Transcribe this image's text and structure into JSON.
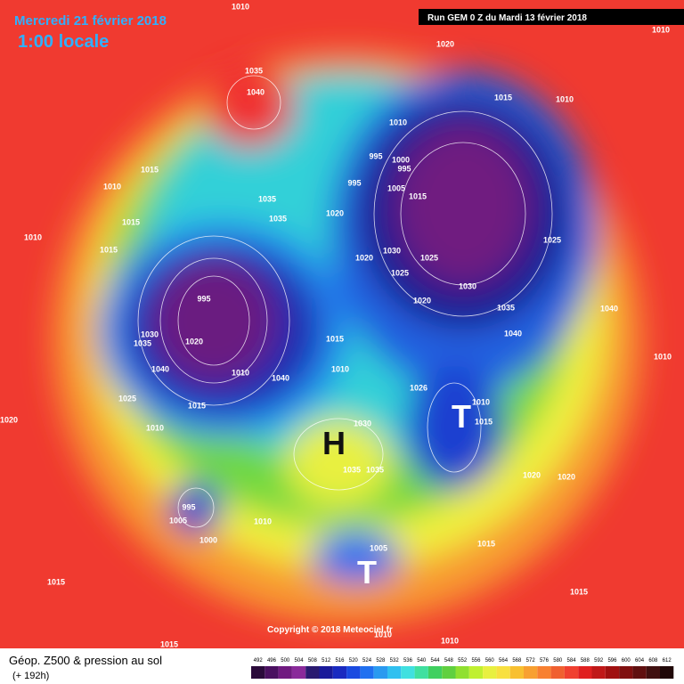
{
  "header": {
    "title": "Mercredi 21 février 2018",
    "time": "1:00 locale",
    "run": "Run GEM 0 Z du Mardi 13 février 2018"
  },
  "footer": {
    "product": "Géop. Z500 & pression au sol",
    "lead": "(+ 192h)",
    "copyright": "Copyright © 2018 Meteociel.fr"
  },
  "centers": [
    "H",
    "T",
    "T"
  ],
  "isobars": [
    "1010",
    "1020",
    "1010",
    "1035",
    "1040",
    "1015",
    "1010",
    "1010",
    "995",
    "1000",
    "995",
    "1015",
    "1010",
    "995",
    "1005",
    "1015",
    "1035",
    "1035",
    "1020",
    "1015",
    "1025",
    "1010",
    "1015",
    "1020",
    "1030",
    "1025",
    "1025",
    "1030",
    "1020",
    "1035",
    "1040",
    "995",
    "1020",
    "1030",
    "1035",
    "1040",
    "1010",
    "1040",
    "1015",
    "1010",
    "1040",
    "1010",
    "1025",
    "1015",
    "1026",
    "1010",
    "1015",
    "1030",
    "1020",
    "1010",
    "1035",
    "1035",
    "1020",
    "1020",
    "995",
    "1005",
    "1010",
    "1000",
    "1005",
    "1015",
    "1015",
    "1015",
    "1010",
    "1015",
    "1010"
  ],
  "scale": {
    "values": [
      492,
      496,
      500,
      504,
      508,
      512,
      516,
      520,
      524,
      528,
      532,
      536,
      540,
      544,
      548,
      552,
      556,
      560,
      564,
      568,
      572,
      576,
      580,
      584,
      588,
      592,
      596,
      600,
      604,
      608,
      612
    ],
    "colors": [
      "#2a0a3a",
      "#4a1060",
      "#701a80",
      "#8a2a9a",
      "#2a1a70",
      "#1a1a9a",
      "#1a2ac0",
      "#1a4ae0",
      "#2070f0",
      "#2a9af0",
      "#30c0f0",
      "#40e0e0",
      "#40e0a0",
      "#40d060",
      "#60d040",
      "#90e030",
      "#c0f030",
      "#e8f040",
      "#f8e040",
      "#f8c030",
      "#f8a030",
      "#f88030",
      "#f06030",
      "#f04030",
      "#e02020",
      "#c01818",
      "#a01010",
      "#801010",
      "#601010",
      "#401010",
      "#200808"
    ]
  }
}
